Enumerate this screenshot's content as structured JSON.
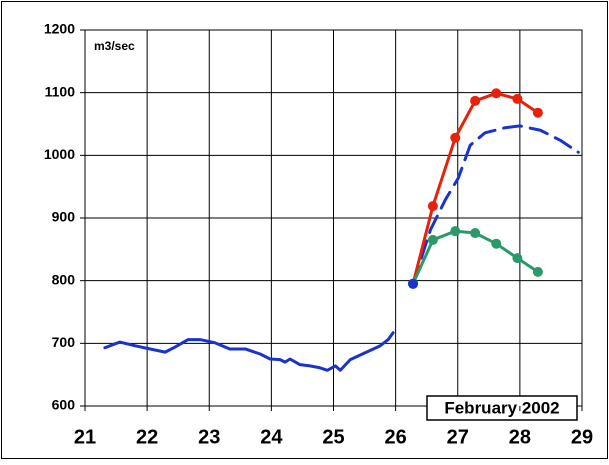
{
  "chart_data": {
    "type": "line",
    "unit_label": "m3/sec",
    "annotation": "February 2002",
    "xlim": [
      21,
      29
    ],
    "xticks": [
      21,
      22,
      23,
      24,
      25,
      26,
      27,
      28,
      29
    ],
    "ylim": [
      600,
      1200
    ],
    "yticks": [
      600,
      700,
      800,
      900,
      1000,
      1100,
      1200
    ],
    "grid": true,
    "series": [
      {
        "color": "#1a33cc",
        "dash": false,
        "markers": false,
        "x": [
          21.32,
          21.56,
          21.81,
          22.05,
          22.29,
          22.45,
          22.66,
          22.85,
          23.09,
          23.33,
          23.58,
          23.82,
          23.98,
          24.14,
          24.22,
          24.3,
          24.46,
          24.62,
          24.78,
          24.9,
          25.03,
          25.11,
          25.27,
          25.51,
          25.75,
          25.88,
          25.96
        ],
        "values": [
          693,
          702,
          696,
          691,
          686,
          694,
          706,
          706,
          701,
          691,
          691,
          683,
          675,
          674,
          670,
          675,
          666,
          664,
          661,
          657,
          664,
          657,
          674,
          685,
          696,
          706,
          717
        ]
      },
      {
        "color": "#1a33cc",
        "dash": true,
        "markers": false,
        "x": [
          26.28,
          26.56,
          26.8,
          27.01,
          27.2,
          27.44,
          27.76,
          28.0,
          28.33,
          28.65,
          28.94
        ],
        "values": [
          795,
          881,
          929,
          964,
          1016,
          1036,
          1044,
          1047,
          1040,
          1024,
          1005
        ]
      },
      {
        "color": "#e8220a",
        "dash": false,
        "markers": true,
        "x": [
          26.28,
          26.6,
          26.96,
          27.28,
          27.62,
          27.96,
          28.29
        ],
        "values": [
          795,
          919,
          1028,
          1087,
          1099,
          1090,
          1068
        ]
      },
      {
        "color": "#2a9a6a",
        "dash": false,
        "markers": true,
        "x": [
          26.28,
          26.6,
          26.96,
          27.28,
          27.62,
          27.96,
          28.29
        ],
        "values": [
          795,
          865,
          879,
          876,
          859,
          836,
          814
        ]
      },
      {
        "color": "#1a33cc",
        "dash": false,
        "markers": true,
        "x": [
          26.28
        ],
        "values": [
          795
        ]
      }
    ]
  }
}
